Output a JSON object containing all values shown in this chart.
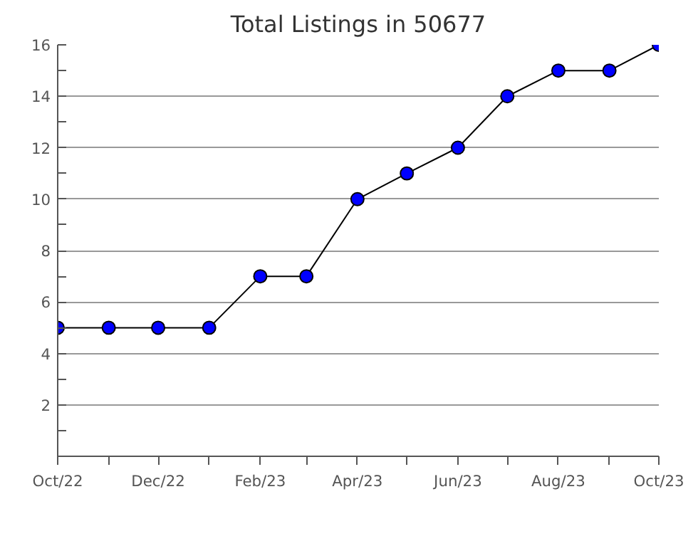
{
  "chart_data": {
    "type": "line",
    "title": "Total Listings in 50677",
    "x": [
      "2022-10",
      "2022-11",
      "2022-12",
      "2023-01",
      "2023-02",
      "2023-03",
      "2023-04",
      "2023-05",
      "2023-06",
      "2023-07",
      "2023-08",
      "2023-09",
      "2023-10"
    ],
    "series": [
      {
        "color": "#0000ff",
        "values": [
          5,
          5,
          5,
          5,
          7,
          7,
          10,
          11,
          12,
          14,
          15,
          15,
          16
        ]
      }
    ],
    "xlim": [
      "2022-10",
      "2023-10"
    ],
    "xticks": [
      {
        "value": "2022-10",
        "label": "Oct/22"
      },
      {
        "value": "2022-11",
        "label": null
      },
      {
        "value": "2022-12",
        "label": "Dec/22"
      },
      {
        "value": "2023-01",
        "label": null
      },
      {
        "value": "2023-02",
        "label": "Feb/23"
      },
      {
        "value": "2023-03",
        "label": null
      },
      {
        "value": "2023-04",
        "label": "Apr/23"
      },
      {
        "value": "2023-05",
        "label": null
      },
      {
        "value": "2023-06",
        "label": "Jun/23"
      },
      {
        "value": "2023-07",
        "label": null
      },
      {
        "value": "2023-08",
        "label": "Aug/23"
      },
      {
        "value": "2023-09",
        "label": null
      },
      {
        "value": "2023-10",
        "label": "Oct/23"
      }
    ],
    "ylim": [
      0,
      16
    ],
    "yticks": [
      {
        "value": 1,
        "label": null
      },
      2,
      {
        "value": 3,
        "label": null
      },
      4,
      {
        "value": 5,
        "label": null
      },
      6,
      {
        "value": 7,
        "label": null
      },
      8,
      {
        "value": 9,
        "label": null
      },
      10,
      {
        "value": 11,
        "label": null
      },
      12,
      {
        "value": 13,
        "label": null
      },
      14,
      {
        "value": 15,
        "label": null
      },
      16
    ],
    "grid": "y",
    "marker": "circle",
    "line_style": "solid"
  }
}
